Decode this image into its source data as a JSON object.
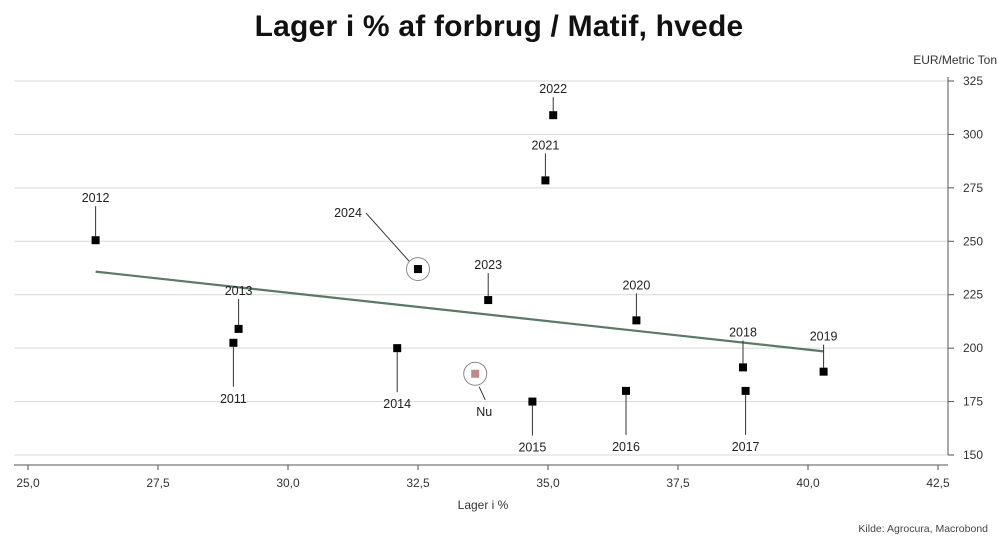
{
  "chart_data": {
    "type": "scatter",
    "title": "Lager i % af forbrug / Matif, hvede",
    "xlabel": "Lager i %",
    "ylabel": "EUR/Metric Ton",
    "xlim": [
      25.0,
      42.5
    ],
    "ylim": [
      150,
      325
    ],
    "x_ticks": [
      "25,0",
      "27,5",
      "30,0",
      "32,5",
      "35,0",
      "37,5",
      "40,0",
      "42,5"
    ],
    "y_ticks": [
      "150",
      "175",
      "200",
      "225",
      "250",
      "275",
      "300",
      "325"
    ],
    "y_axis_position": "right",
    "grid": "horizontal",
    "points": [
      {
        "label": "2011",
        "x": 28.95,
        "y": 202.5
      },
      {
        "label": "2012",
        "x": 26.3,
        "y": 250.5
      },
      {
        "label": "2013",
        "x": 29.05,
        "y": 209
      },
      {
        "label": "2014",
        "x": 32.1,
        "y": 200
      },
      {
        "label": "2015",
        "x": 34.7,
        "y": 175
      },
      {
        "label": "2016",
        "x": 36.5,
        "y": 180
      },
      {
        "label": "2017",
        "x": 38.8,
        "y": 180
      },
      {
        "label": "2018",
        "x": 38.75,
        "y": 191
      },
      {
        "label": "2019",
        "x": 40.3,
        "y": 189
      },
      {
        "label": "2020",
        "x": 36.7,
        "y": 213
      },
      {
        "label": "2021",
        "x": 34.95,
        "y": 278.5
      },
      {
        "label": "2022",
        "x": 35.1,
        "y": 309
      },
      {
        "label": "2023",
        "x": 33.85,
        "y": 222.5
      },
      {
        "label": "2024",
        "x": 32.5,
        "y": 237,
        "highlight": "circle"
      },
      {
        "label": "Nu",
        "x": 33.6,
        "y": 188,
        "highlight": "circle-current"
      }
    ],
    "trendline": {
      "x": [
        26.3,
        40.3
      ],
      "y": [
        235.8,
        198.5
      ]
    },
    "source": "Kilde: Agrocura, Macrobond"
  },
  "colors": {
    "marker": "#000000",
    "current_marker": "#c08a88",
    "trendline": "#5a7a68",
    "grid": "#d9d9d9",
    "leader": "#333333",
    "highlight_ring": "#888888"
  }
}
